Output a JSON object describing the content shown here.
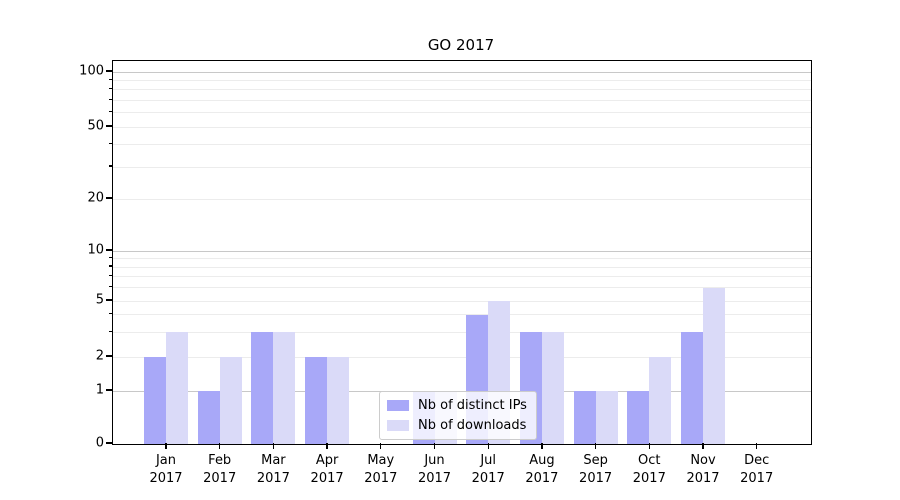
{
  "chart_data": {
    "type": "bar",
    "title": "GO 2017",
    "categories": [
      "Jan",
      "Feb",
      "Mar",
      "Apr",
      "May",
      "Jun",
      "Jul",
      "Aug",
      "Sep",
      "Oct",
      "Nov",
      "Dec"
    ],
    "year_label": "2017",
    "series": [
      {
        "name": "Nb of distinct IPs",
        "color": "#a8a8f8",
        "values": [
          2,
          1,
          3,
          2,
          0,
          1,
          4,
          3,
          1,
          1,
          3,
          0
        ]
      },
      {
        "name": "Nb of downloads",
        "color": "#dadaf8",
        "values": [
          3,
          2,
          3,
          2,
          0,
          1,
          5,
          3,
          1,
          2,
          6,
          0
        ]
      }
    ],
    "y_axis": {
      "scale": "symlog",
      "labeled_ticks": [
        0,
        1,
        2,
        5,
        10,
        20,
        50,
        100
      ],
      "major_gridline_values": [
        1,
        10,
        100
      ],
      "minor_gridline_values": [
        2,
        3,
        4,
        5,
        6,
        7,
        8,
        9,
        20,
        30,
        40,
        50,
        60,
        70,
        80,
        90
      ],
      "ylim": [
        0,
        115
      ]
    },
    "grid": true,
    "legend": {
      "position": "lower-center"
    }
  }
}
